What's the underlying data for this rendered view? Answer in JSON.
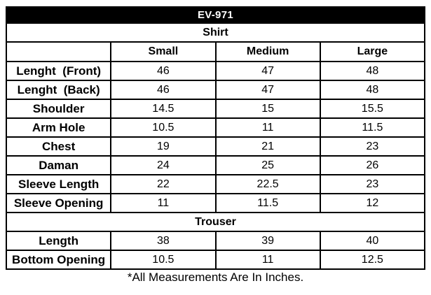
{
  "table": {
    "title": "EV-971",
    "columns": {
      "c1": "Small",
      "c2": "Medium",
      "c3": "Large"
    },
    "sections": [
      {
        "name": "Shirt",
        "rows": [
          {
            "label": "Lenght  (Front)",
            "values": [
              "46",
              "47",
              "48"
            ]
          },
          {
            "label": "Lenght  (Back)",
            "values": [
              "46",
              "47",
              "48"
            ]
          },
          {
            "label": "Shoulder",
            "values": [
              "14.5",
              "15",
              "15.5"
            ]
          },
          {
            "label": "Arm Hole",
            "values": [
              "10.5",
              "11",
              "11.5"
            ]
          },
          {
            "label": "Chest",
            "values": [
              "19",
              "21",
              "23"
            ]
          },
          {
            "label": "Daman",
            "values": [
              "24",
              "25",
              "26"
            ]
          },
          {
            "label": "Sleeve Length",
            "values": [
              "22",
              "22.5",
              "23"
            ]
          },
          {
            "label": "Sleeve Opening",
            "values": [
              "11",
              "11.5",
              "12"
            ]
          }
        ]
      },
      {
        "name": "Trouser",
        "rows": [
          {
            "label": "Length",
            "values": [
              "38",
              "39",
              "40"
            ]
          },
          {
            "label": "Bottom Opening",
            "values": [
              "10.5",
              "11",
              "12.5"
            ]
          }
        ]
      }
    ],
    "footnote": "*All Measurements Are In Inches."
  },
  "colors": {
    "title_bar_bg": "#000000",
    "title_bar_text": "#ffffff",
    "border": "#000000",
    "body_text": "#000000"
  }
}
